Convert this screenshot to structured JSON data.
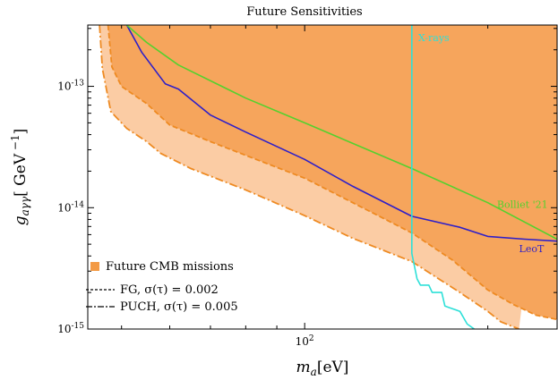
{
  "chart_data": {
    "type": "area",
    "title": "Future Sensitivities",
    "xlabel": "m_a[eV]",
    "ylabel": "g_{aγγ}[ GeV^{-1}]",
    "x_scale": "log",
    "y_scale": "log",
    "xlim": [
      44,
      260
    ],
    "ylim": [
      1e-15,
      3.2e-13
    ],
    "x_ticks": [
      {
        "value": 100,
        "label": "10^2"
      }
    ],
    "y_ticks": [
      {
        "value": 1e-13,
        "label": "10^-13"
      },
      {
        "value": 1e-14,
        "label": "10^-14"
      },
      {
        "value": 1e-15,
        "label": "10^-15"
      }
    ],
    "legend_position": "bottom-left",
    "legend": {
      "region_label": "Future CMB missions",
      "lines": [
        {
          "style": "dashed",
          "label": "FG, σ(τ) = 0.002"
        },
        {
          "style": "dashdot",
          "label": "PUCH, σ(τ) = 0.005"
        }
      ]
    },
    "regions": [
      {
        "name": "FG, σ(τ) = 0.002",
        "fill": "#f6a55c",
        "boundary_style": "dashed",
        "x": [
          47.5,
          48.2,
          50,
          55,
          60,
          70,
          80,
          100,
          120,
          150,
          175,
          200,
          220,
          240,
          260
        ],
        "y": [
          3.2e-13,
          1.45e-13,
          1e-13,
          7.2e-14,
          4.8e-14,
          3.5e-14,
          2.7e-14,
          1.75e-14,
          1.1e-14,
          6.2e-15,
          3.7e-15,
          2.1e-15,
          1.6e-15,
          1.3e-15,
          1.2e-15
        ]
      },
      {
        "name": "PUCH, σ(τ) = 0.005",
        "fill": "#fbcca4",
        "boundary_style": "dashdot",
        "x": [
          46,
          46.5,
          48,
          51,
          55,
          58,
          65,
          80,
          100,
          120,
          150,
          180,
          200,
          210,
          225
        ],
        "y": [
          3.2e-13,
          1.4e-13,
          6.2e-14,
          4.5e-14,
          3.5e-14,
          2.8e-14,
          2.1e-14,
          1.4e-14,
          8.6e-15,
          5.6e-15,
          3.6e-15,
          2e-15,
          1.4e-15,
          1.15e-15,
          1e-15
        ]
      }
    ],
    "series": [
      {
        "name": "LeoT",
        "color": "#2e1fc9",
        "x": [
          51,
          54,
          59,
          62,
          70,
          80,
          100,
          120,
          150,
          180,
          200,
          230,
          260
        ],
        "y": [
          3.2e-13,
          1.9e-13,
          1.05e-13,
          9.5e-14,
          5.8e-14,
          4.2e-14,
          2.5e-14,
          1.5e-14,
          8.5e-15,
          6.9e-15,
          5.8e-15,
          5.5e-15,
          5.3e-15
        ]
      },
      {
        "name": "Bolliet '21",
        "color": "#55d12e",
        "x": [
          51,
          55,
          62,
          80,
          100,
          150,
          200,
          260
        ],
        "y": [
          3.2e-13,
          2.3e-13,
          1.5e-13,
          8e-14,
          5e-14,
          2.1e-14,
          1.1e-14,
          5.5e-15
        ]
      },
      {
        "name": "X-rays",
        "color": "#2ee0d8",
        "x": [
          150,
          150,
          150,
          153,
          155,
          160,
          162,
          168,
          170,
          173,
          180,
          185,
          190
        ],
        "y": [
          3.2e-13,
          1e-13,
          4.2e-15,
          2.6e-15,
          2.3e-15,
          2.3e-15,
          2e-15,
          2e-15,
          1.55e-15,
          1.5e-15,
          1.4e-15,
          1.1e-15,
          1e-15
        ]
      }
    ],
    "curve_labels": [
      {
        "text": "X-rays",
        "x": 163,
        "y": 2.35e-13,
        "color": "#2ee0d8"
      },
      {
        "text": "Bolliet '21",
        "x": 228,
        "y": 1e-14,
        "color": "#55d12e"
      },
      {
        "text": "LeoT",
        "x": 236,
        "y": 4.3e-15,
        "color": "#2e1fc9"
      }
    ]
  }
}
